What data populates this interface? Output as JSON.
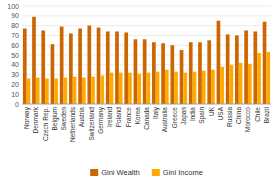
{
  "chart_data": {
    "type": "bar",
    "categories": [
      "Norway",
      "Denmark",
      "Czech Rep.",
      "Belgium",
      "Sweden",
      "Netherlands",
      "Austria",
      "Switzerland",
      "Germany",
      "Ireland",
      "Poland",
      "France",
      "Korea",
      "Canada",
      "Italy",
      "Australia",
      "Greece",
      "Japan",
      "India",
      "Spain",
      "UK",
      "USA",
      "Russia",
      "China",
      "Morocco",
      "Chile",
      "Brazil"
    ],
    "series": [
      {
        "name": "Gini Wealth",
        "color": "#cc6600",
        "values": [
          77,
          89,
          75,
          61,
          79,
          72,
          77,
          80,
          78,
          74,
          74,
          73,
          66,
          66,
          63,
          62,
          60,
          55,
          63,
          63,
          65,
          85,
          71,
          70,
          75,
          74,
          84
        ]
      },
      {
        "name": "Gini Income",
        "color": "#ffaa00",
        "values": [
          26,
          27,
          26,
          26,
          27,
          28,
          27,
          28,
          29,
          32,
          32,
          32,
          31,
          32,
          33,
          35,
          33,
          32,
          33,
          34,
          35,
          38,
          40,
          42,
          41,
          52,
          53
        ]
      }
    ],
    "ylim": [
      0,
      100
    ],
    "yticks": [
      0,
      10,
      20,
      30,
      40,
      50,
      60,
      70,
      80,
      90,
      100
    ],
    "grid": true,
    "legend": "bottom"
  }
}
